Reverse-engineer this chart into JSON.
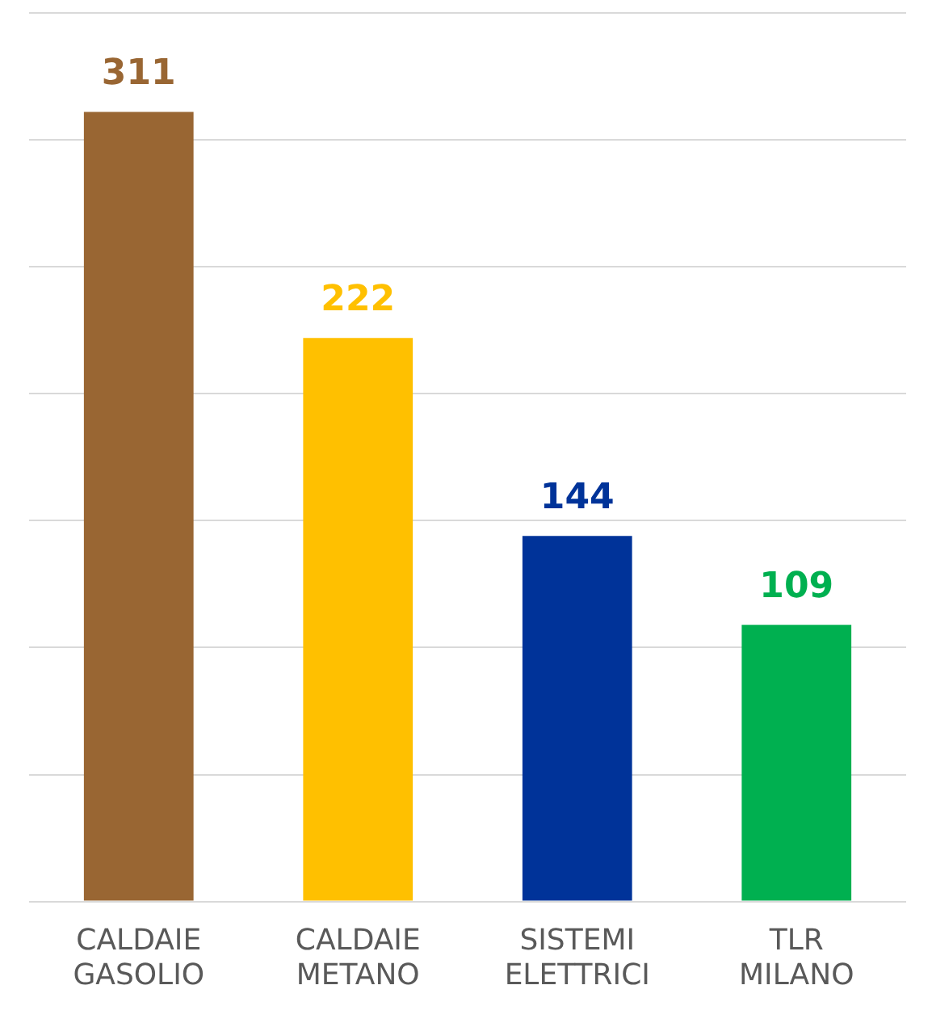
{
  "chart_data": {
    "type": "bar",
    "categories": [
      "CALDAIE GASOLIO",
      "CALDAIE METANO",
      "SISTEMI ELETTRICI",
      "TLR MILANO"
    ],
    "values": [
      311,
      222,
      144,
      109
    ],
    "colors": [
      "#996633",
      "#ffc000",
      "#003399",
      "#00b050"
    ],
    "ylim": [
      0,
      350
    ],
    "yticks": [
      {
        "value": 0,
        "label": null
      },
      {
        "value": 50,
        "label": null
      },
      {
        "value": 100,
        "label": null
      },
      {
        "value": 150,
        "label": null
      },
      {
        "value": 200,
        "label": null
      },
      {
        "value": 250,
        "label": null
      },
      {
        "value": 300,
        "label": null
      },
      {
        "value": 350,
        "label": null
      }
    ],
    "tick_labels": "x",
    "grid": "y",
    "data_labels": true
  }
}
